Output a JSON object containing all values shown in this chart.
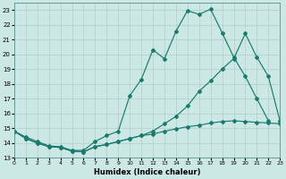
{
  "xlabel": "Humidex (Indice chaleur)",
  "xlim": [
    0,
    23
  ],
  "ylim": [
    13,
    23.5
  ],
  "yticks": [
    13,
    14,
    15,
    16,
    17,
    18,
    19,
    20,
    21,
    22,
    23
  ],
  "xticks": [
    0,
    1,
    2,
    3,
    4,
    5,
    6,
    7,
    8,
    9,
    10,
    11,
    12,
    13,
    14,
    15,
    16,
    17,
    18,
    19,
    20,
    21,
    22,
    23
  ],
  "bg_color": "#cce8e4",
  "line_color": "#1a7a6e",
  "line1_x": [
    0,
    1,
    2,
    3,
    4,
    5,
    6,
    7,
    8,
    9,
    10,
    11,
    12,
    13,
    14,
    15,
    16,
    17,
    18,
    19,
    20,
    21,
    22,
    23
  ],
  "line1_y": [
    14.8,
    14.4,
    14.1,
    13.8,
    13.75,
    13.5,
    13.5,
    14.1,
    14.5,
    14.8,
    17.2,
    18.3,
    20.3,
    19.7,
    21.55,
    22.95,
    22.7,
    23.05,
    21.45,
    19.8,
    18.5,
    17.0,
    15.5,
    null
  ],
  "line2_x": [
    0,
    1,
    2,
    3,
    4,
    5,
    6,
    7,
    8,
    9,
    10,
    11,
    12,
    13,
    14,
    15,
    16,
    17,
    18,
    19,
    20,
    21,
    22,
    23
  ],
  "line2_y": [
    14.8,
    14.3,
    14.0,
    13.75,
    13.7,
    13.45,
    13.4,
    13.75,
    13.9,
    14.1,
    14.3,
    14.5,
    14.8,
    15.3,
    15.8,
    16.5,
    17.5,
    18.2,
    19.0,
    19.7,
    21.4,
    19.8,
    18.5,
    15.5
  ],
  "line3_x": [
    0,
    1,
    2,
    3,
    4,
    5,
    6,
    7,
    8,
    9,
    10,
    11,
    12,
    13,
    14,
    15,
    16,
    17,
    18,
    19,
    20,
    21,
    22,
    23
  ],
  "line3_y": [
    14.8,
    14.3,
    14.0,
    13.75,
    13.7,
    13.45,
    13.4,
    13.75,
    13.9,
    14.1,
    14.3,
    14.5,
    14.6,
    14.8,
    14.95,
    15.1,
    15.2,
    15.35,
    15.45,
    15.5,
    15.45,
    15.4,
    15.35,
    15.3
  ]
}
